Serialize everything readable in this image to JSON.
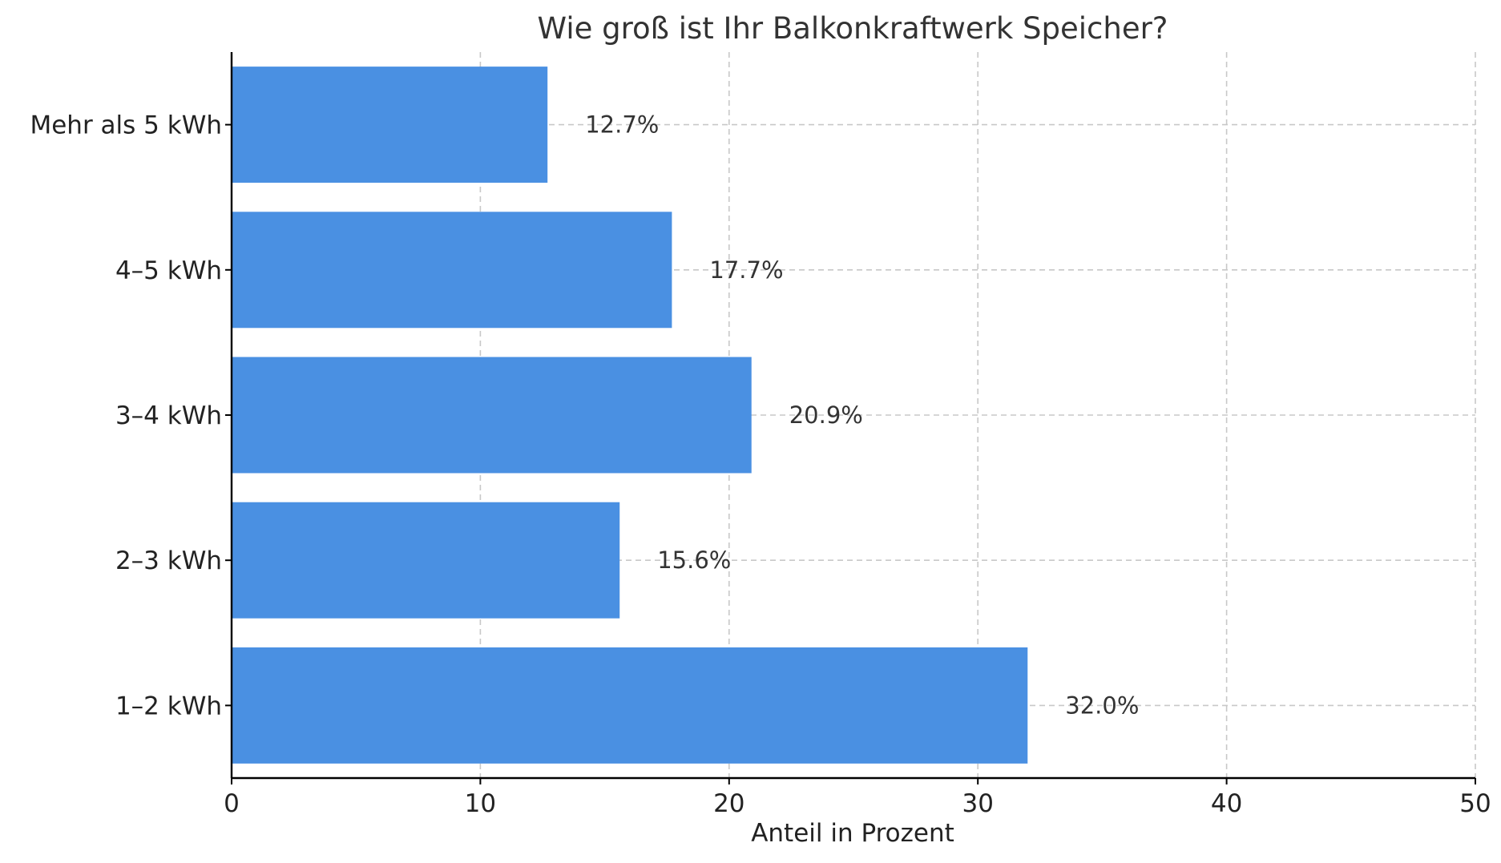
{
  "chart_data": {
    "type": "bar",
    "orientation": "horizontal",
    "title": "Wie groß ist Ihr Balkonkraftwerk Speicher?",
    "xlabel": "Anteil in Prozent",
    "ylabel": "",
    "categories": [
      "1–2 kWh",
      "2–3 kWh",
      "3–4 kWh",
      "4–5 kWh",
      "Mehr als 5 kWh"
    ],
    "values": [
      32.0,
      15.6,
      20.9,
      17.7,
      12.7
    ],
    "data_labels": [
      "32.0%",
      "15.6%",
      "20.9%",
      "17.7%",
      "12.7%"
    ],
    "xlim": [
      0,
      50
    ],
    "xticks": [
      0,
      10,
      20,
      30,
      40,
      50
    ],
    "xtick_labels": [
      "0",
      "10",
      "20",
      "30",
      "40",
      "50"
    ],
    "grid": true,
    "bar_color": "#4a90e2"
  }
}
